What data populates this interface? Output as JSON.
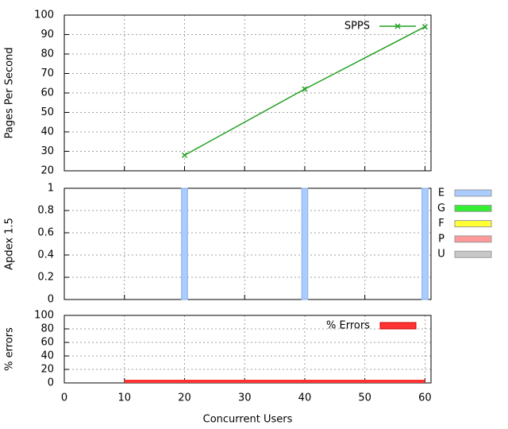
{
  "chart_data": [
    {
      "type": "line",
      "ylabel": "Pages Per Second",
      "x": [
        20,
        40,
        60
      ],
      "series": [
        {
          "name": "SPPS",
          "color": "#22a022",
          "values": [
            28,
            62,
            94
          ]
        }
      ],
      "xlim": [
        0,
        61
      ],
      "xticks": [
        0,
        10,
        20,
        30,
        40,
        50,
        60
      ],
      "ylim": [
        20,
        100
      ],
      "yticks": [
        20,
        30,
        40,
        50,
        60,
        70,
        80,
        90,
        100
      ],
      "grid": true,
      "legend": "top-right"
    },
    {
      "type": "bar",
      "ylabel": "Apdex 1.5",
      "x": [
        20,
        40,
        60
      ],
      "series": [
        {
          "name": "E",
          "color": "#aaccff",
          "values": [
            1,
            1,
            1
          ]
        },
        {
          "name": "G",
          "color": "#33ee33",
          "values": [
            0,
            0,
            0
          ]
        },
        {
          "name": "F",
          "color": "#ffff33",
          "values": [
            0,
            0,
            0
          ]
        },
        {
          "name": "P",
          "color": "#ff9999",
          "values": [
            0,
            0,
            0
          ]
        },
        {
          "name": "U",
          "color": "#c8c8c8",
          "values": [
            0,
            0,
            0
          ]
        }
      ],
      "xlim": [
        0,
        61
      ],
      "xticks": [
        0,
        10,
        20,
        30,
        40,
        50,
        60
      ],
      "ylim": [
        0,
        1
      ],
      "yticks": [
        0,
        0.2,
        0.4,
        0.6,
        0.8,
        1
      ],
      "grid": true,
      "legend": "outside-right"
    },
    {
      "type": "area",
      "ylabel": "% errors",
      "xlabel": "Concurrent Users",
      "x": [
        10,
        20,
        30,
        40,
        50,
        60
      ],
      "series": [
        {
          "name": "% Errors",
          "color": "#ff3333",
          "values": [
            0,
            0,
            0,
            0,
            0,
            0
          ]
        }
      ],
      "xlim": [
        0,
        61
      ],
      "xticks": [
        0,
        10,
        20,
        30,
        40,
        50,
        60
      ],
      "ylim": [
        0,
        100
      ],
      "yticks": [
        0,
        20,
        40,
        60,
        80,
        100
      ],
      "grid": true,
      "legend": "top-right"
    }
  ]
}
